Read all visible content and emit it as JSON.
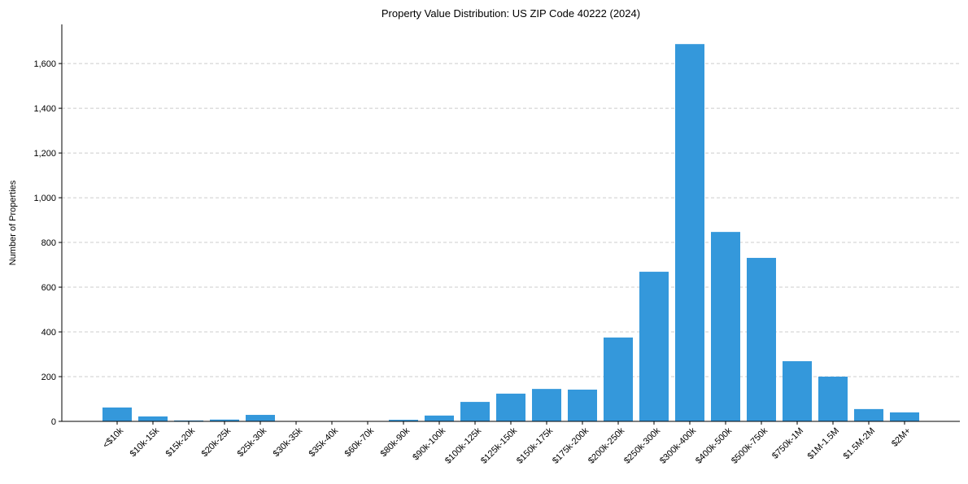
{
  "chart_data": {
    "type": "bar",
    "title": "Property Value Distribution: US ZIP Code 40222 (2024)",
    "xlabel": "",
    "ylabel": "Number of Properties",
    "ylim": [
      0,
      1775
    ],
    "yticks": [
      0,
      200,
      400,
      600,
      800,
      1000,
      1200,
      1400,
      1600
    ],
    "ytick_labels": [
      "0",
      "200",
      "400",
      "600",
      "800",
      "1,000",
      "1,200",
      "1,400",
      "1,600"
    ],
    "grid": "y-dashed",
    "bar_color": "#3498db",
    "categories": [
      "<$10k",
      "$10k-15k",
      "$15k-20k",
      "$20k-25k",
      "$25k-30k",
      "$30k-35k",
      "$35k-40k",
      "$60k-70k",
      "$80k-90k",
      "$90k-100k",
      "$100k-125k",
      "$125k-150k",
      "$150k-175k",
      "$175k-200k",
      "$200k-250k",
      "$250k-300k",
      "$300k-400k",
      "$400k-500k",
      "$500k-750k",
      "$750k-1M",
      "$1M-1.5M",
      "$1.5M-2M",
      "$2M+"
    ],
    "values": [
      62,
      22,
      4,
      8,
      29,
      0,
      0,
      0,
      7,
      26,
      87,
      124,
      145,
      142,
      375,
      669,
      1687,
      847,
      731,
      269,
      200,
      55,
      40
    ]
  }
}
